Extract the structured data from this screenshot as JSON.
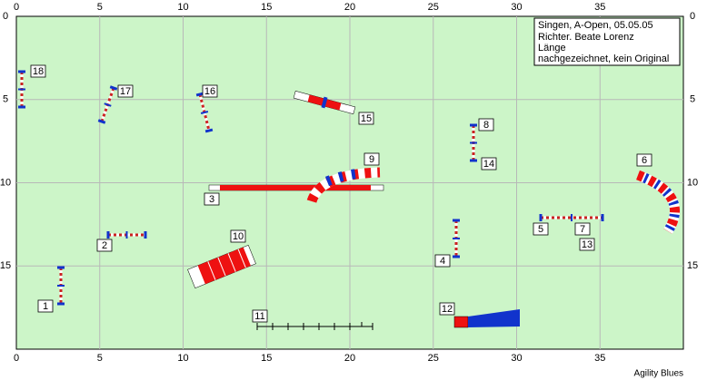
{
  "axes": {
    "x_ticks": [
      0,
      5,
      10,
      15,
      20,
      25,
      30,
      35
    ],
    "y_ticks": [
      0,
      5,
      10,
      15
    ]
  },
  "info": [
    "Singen, A-Open, 05.05.05",
    "Richter. Beate Lorenz",
    "Länge",
    "nachgezeichnet, kein Original"
  ],
  "obstacle_labels": [
    "18",
    "17",
    "16",
    "15",
    "8",
    "14",
    "9",
    "3",
    "6",
    "2",
    "10",
    "5",
    "7",
    "13",
    "4",
    "1",
    "11",
    "12"
  ],
  "footer": "Agility Blues"
}
